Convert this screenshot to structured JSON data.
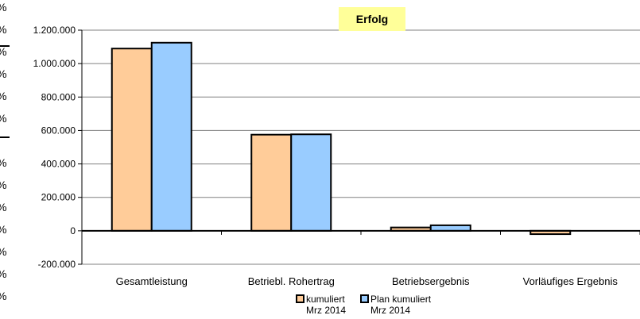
{
  "chart_data": {
    "type": "bar",
    "title": "Erfolg",
    "categories": [
      "Gesamtleistung",
      "Betriebl. Rohertrag",
      "Betriebsergebnis",
      "Vorläufiges Ergebnis"
    ],
    "series": [
      {
        "name": "kumuliert\nMrz 2014",
        "values": [
          1090000,
          575000,
          20000,
          -20000
        ]
      },
      {
        "name": "Plan kumuliert\nMrz 2014",
        "values": [
          1125000,
          577000,
          33000,
          0
        ]
      }
    ],
    "ylim": [
      -200000,
      1200000
    ],
    "yticks": [
      1200000,
      1000000,
      800000,
      600000,
      400000,
      200000,
      0,
      -200000
    ],
    "ytick_labels": [
      "1.200.000",
      "1.000.000",
      "800.000",
      "600.000",
      "400.000",
      "200.000",
      "0",
      "-200.000"
    ],
    "grid": true,
    "legend_position": "bottom",
    "colors": {
      "kumuliert": "#ffcc99",
      "plan": "#99ccff",
      "title_bg": "#ffff99",
      "grid": "#808080"
    }
  }
}
